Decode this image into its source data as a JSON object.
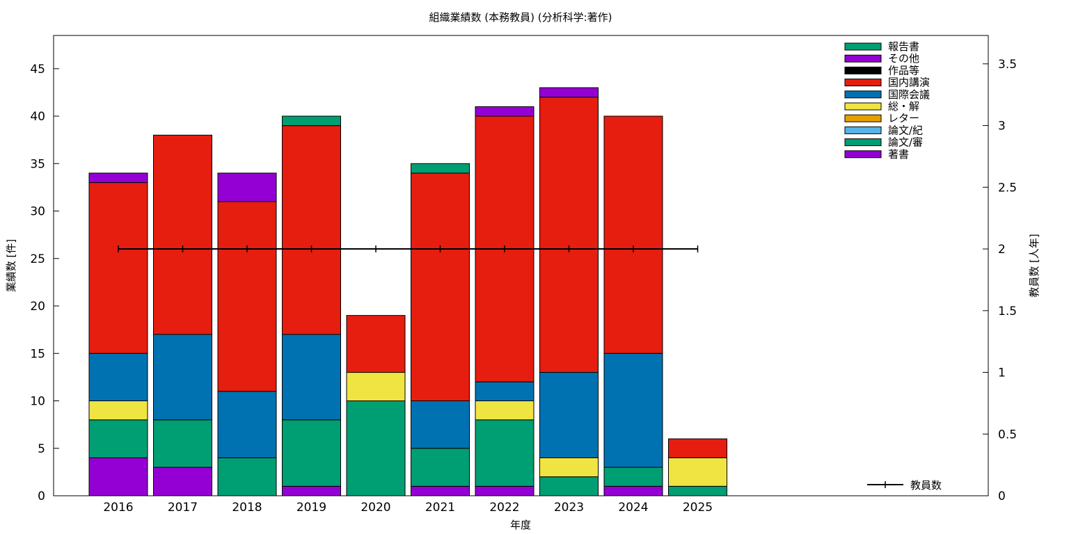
{
  "chart_data": {
    "type": "bar",
    "stacked": true,
    "title": "組織業績数 (本務教員) (分析科学:著作)",
    "xlabel": "年度",
    "ylabel": "業績数 [件]",
    "y2label": "教員数 [人年]",
    "ylim": [
      0,
      48.5
    ],
    "y2lim": [
      0,
      3.73
    ],
    "yticks": [
      0,
      5,
      10,
      15,
      20,
      25,
      30,
      35,
      40,
      45
    ],
    "y2ticks": [
      "0",
      "0.5",
      "1",
      "1.5",
      "2",
      "2.5",
      "3",
      "3.5"
    ],
    "y2tick_values": [
      0,
      0.5,
      1,
      1.5,
      2,
      2.5,
      3,
      3.5
    ],
    "grid": false,
    "legend_position": "top-right",
    "categories": [
      "2016",
      "2017",
      "2018",
      "2019",
      "2020",
      "2021",
      "2022",
      "2023",
      "2024",
      "2025"
    ],
    "series": [
      {
        "name": "著書",
        "color": "#9400d3",
        "values": [
          4,
          3,
          0,
          1,
          0,
          1,
          1,
          0,
          1,
          0
        ]
      },
      {
        "name": "論文/審",
        "color": "#009e73",
        "values": [
          4,
          5,
          4,
          7,
          10,
          4,
          7,
          2,
          2,
          1
        ]
      },
      {
        "name": "論文/紀",
        "color": "#56b4e9",
        "values": [
          0,
          0,
          0,
          0,
          0,
          0,
          0,
          0,
          0,
          0
        ]
      },
      {
        "name": "レター",
        "color": "#e69f00",
        "values": [
          0,
          0,
          0,
          0,
          0,
          0,
          0,
          0,
          0,
          0
        ]
      },
      {
        "name": "総・解",
        "color": "#f0e442",
        "values": [
          2,
          0,
          0,
          0,
          3,
          0,
          2,
          2,
          0,
          3
        ]
      },
      {
        "name": "国際会議",
        "color": "#0072b2",
        "values": [
          5,
          9,
          7,
          9,
          0,
          5,
          2,
          9,
          12,
          0
        ]
      },
      {
        "name": "国内講演",
        "color": "#e51e10",
        "values": [
          18,
          21,
          20,
          22,
          6,
          24,
          28,
          29,
          25,
          2
        ]
      },
      {
        "name": "作品等",
        "color": "#000000",
        "values": [
          0,
          0,
          0,
          0,
          0,
          0,
          0,
          0,
          0,
          0
        ]
      },
      {
        "name": "その他",
        "color": "#9400d3",
        "values": [
          1,
          0,
          3,
          0,
          0,
          0,
          1,
          1,
          0,
          0
        ]
      },
      {
        "name": "報告書",
        "color": "#009e73",
        "values": [
          0,
          0,
          0,
          1,
          0,
          1,
          0,
          0,
          0,
          0
        ]
      }
    ],
    "line_series": {
      "name": "教員数",
      "color": "#000000",
      "axis": "y2",
      "values": [
        2,
        2,
        2,
        2,
        2,
        2,
        2,
        2,
        2,
        2
      ]
    }
  }
}
